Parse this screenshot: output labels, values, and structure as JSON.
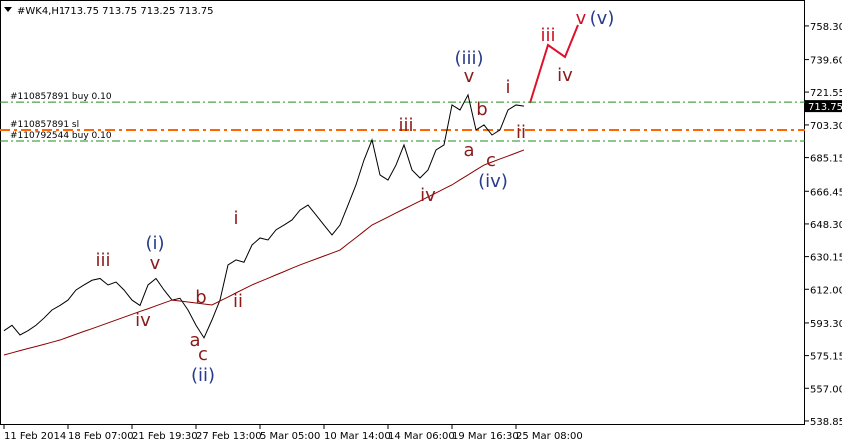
{
  "chart_data": {
    "type": "line",
    "symbol": "#WK4,H1",
    "quote": "713.75 713.75 713.25 713.75",
    "categories": [
      "11 Feb 2014",
      null,
      null,
      null,
      null,
      null,
      null,
      null,
      "18 Feb 07:00",
      null,
      null,
      null,
      null,
      null,
      null,
      null,
      "21 Feb 19:30",
      null,
      null,
      null,
      null,
      null,
      null,
      null,
      "27 Feb 13:00",
      null,
      null,
      null,
      null,
      null,
      null,
      null,
      "5 Mar 05:00",
      null,
      null,
      null,
      null,
      null,
      null,
      null,
      "10 Mar 14:00",
      null,
      null,
      null,
      null,
      null,
      null,
      null,
      "14 Mar 06:00",
      null,
      null,
      null,
      null,
      null,
      null,
      null,
      "19 Mar 16:30",
      null,
      null,
      null,
      null,
      null,
      null,
      null,
      "25 Mar 08:00",
      null
    ],
    "series": [
      {
        "color": "#000000",
        "values": [
          589,
          592,
          586.6,
          589,
          592,
          596,
          600.5,
          603,
          606,
          611.6,
          614.4,
          617,
          618,
          614.4,
          616,
          611.6,
          606,
          603,
          614.4,
          618,
          611.6,
          606,
          607,
          600.5,
          592,
          585,
          595,
          606,
          625.5,
          628.3,
          627,
          636.6,
          640.5,
          639.4,
          645,
          647.7,
          650.5,
          656,
          658.8,
          653.3,
          647.7,
          642.2,
          647.7,
          658.8,
          670,
          683.8,
          695,
          675.5,
          672.7,
          681,
          692.2,
          678.3,
          673.8,
          678.3,
          689.4,
          692.2,
          714.4,
          711.6,
          720,
          700.5,
          703.3,
          697.7,
          700.5,
          711.6,
          714.4,
          713.75
        ]
      },
      {
        "color": "#8b0000",
        "values": [
          575.5,
          576.7,
          577.9,
          579.1,
          580.2,
          581.4,
          582.6,
          583.8,
          585.4,
          587.0,
          588.6,
          590.1,
          591.7,
          593.3,
          594.9,
          596.5,
          598.1,
          599.7,
          601.2,
          602.8,
          604.4,
          606.0,
          605.5,
          604.9,
          604.4,
          603.8,
          603.3,
          605.5,
          607.7,
          610.0,
          612.2,
          614.4,
          616.3,
          618.1,
          620.0,
          621.8,
          623.7,
          625.5,
          627.2,
          628.8,
          630.5,
          632.1,
          633.8,
          637.3,
          640.7,
          644.2,
          647.7,
          649.9,
          652.1,
          654.4,
          656.6,
          658.8,
          661.0,
          663.3,
          665.5,
          667.8,
          670.0,
          672.8,
          675.5,
          678.3,
          681.0,
          682.7,
          684.4,
          686.0,
          687.7,
          689.4
        ]
      }
    ],
    "ylim": [
      536.6,
      772.7
    ],
    "yticks": [
      {
        "value": 758.3,
        "label": "758.30"
      },
      {
        "value": 739.6,
        "label": "739.60"
      },
      721.55,
      {
        "value": 703.3,
        "label": "703.30"
      },
      685.15,
      666.45,
      {
        "value": 648.3,
        "label": "648.30"
      },
      630.15,
      {
        "value": 612,
        "label": "612.00"
      },
      {
        "value": 593.3,
        "label": "593.30"
      },
      575.15,
      {
        "value": 557,
        "label": "557.00"
      },
      538.85
    ],
    "last_price": 713.75,
    "levels": [
      {
        "value": 716,
        "label": "#110857891 buy 0.10",
        "color": "#1e8c1e",
        "width": 1
      },
      {
        "value": 700.5,
        "label": "#110857891 sl",
        "color": "#ff6600",
        "width": 2
      },
      {
        "value": 694.4,
        "label": "#110792544 buy 0.10",
        "color": "#1e8c1e",
        "width": 1
      }
    ],
    "annotations": [
      {
        "text": "iii",
        "color": "#8b1a1a"
      },
      {
        "text": "(i)",
        "color": "#283a8a"
      },
      {
        "text": "v",
        "color": "#8b1a1a"
      },
      {
        "text": "iv",
        "color": "#8b1a1a"
      },
      {
        "text": "b",
        "color": "#8b1a1a"
      },
      {
        "text": "ii",
        "color": "#8b1a1a"
      },
      {
        "text": "a",
        "color": "#8b1a1a"
      },
      {
        "text": "c",
        "color": "#8b1a1a"
      },
      {
        "text": "(ii)",
        "color": "#283a8a"
      },
      {
        "text": "i",
        "color": "#8b1a1a"
      },
      {
        "text": "iii",
        "color": "#8b1a1a"
      },
      {
        "text": "iv",
        "color": "#8b1a1a"
      },
      {
        "text": "(iii)",
        "color": "#283a8a"
      },
      {
        "text": "v",
        "color": "#8b1a1a"
      },
      {
        "text": "b",
        "color": "#8b1a1a"
      },
      {
        "text": "a",
        "color": "#8b1a1a"
      },
      {
        "text": "c",
        "color": "#8b1a1a"
      },
      {
        "text": "(iv)",
        "color": "#283a8a"
      },
      {
        "text": "i",
        "color": "#8b1a1a"
      },
      {
        "text": "ii",
        "color": "#8b1a1a"
      },
      {
        "text": "iii",
        "color": "#cc1122"
      },
      {
        "text": "iv",
        "color": "#8b1a1a"
      },
      {
        "text": "v",
        "color": "#cc1122"
      },
      {
        "text": "(v)",
        "color": "#283a8a"
      }
    ]
  }
}
